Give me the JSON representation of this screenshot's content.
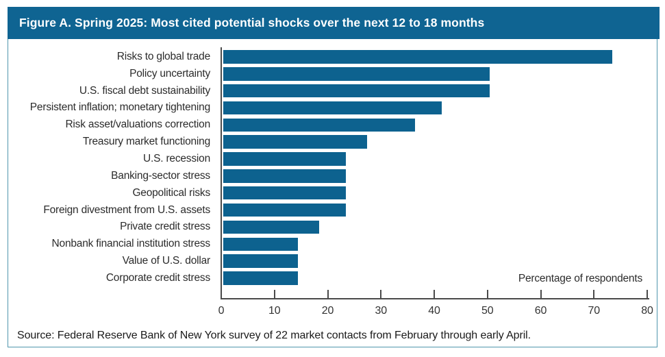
{
  "figure": {
    "title": "Figure A. Spring 2025: Most cited potential shocks over the next 12 to 18 months",
    "source": "Source: Federal Reserve Bank of New York survey of 22 market contacts from February through early April."
  },
  "colors": {
    "header_bg": "#0f6492",
    "bar": "#0d628f",
    "frame_border": "#4f96ad",
    "axis": "#4a4a4a",
    "label_text": "#2b2b2b"
  },
  "chart_data": {
    "type": "bar",
    "orientation": "horizontal",
    "title": "Figure A. Spring 2025: Most cited potential shocks over the next 12 to 18 months",
    "categories": [
      "Risks to global trade",
      "Policy uncertainty",
      "U.S. fiscal debt sustainability",
      "Persistent inflation; monetary tightening",
      "Risk asset/valuations correction",
      "Treasury market functioning",
      "U.S. recession",
      "Banking-sector stress",
      "Geopolitical risks",
      "Foreign divestment from U.S. assets",
      "Private credit stress",
      "Nonbank financial institution stress",
      "Value of U.S. dollar",
      "Corporate credit stress"
    ],
    "values": [
      73,
      50,
      50,
      41,
      36,
      27,
      23,
      23,
      23,
      23,
      18,
      14,
      14,
      14
    ],
    "xlabel": "Percentage of respondents",
    "ylabel": "",
    "xlim": [
      0,
      80
    ],
    "xticks": [
      0,
      10,
      20,
      30,
      40,
      50,
      60,
      70,
      80
    ],
    "grid": false,
    "legend": "none",
    "source": "Source: Federal Reserve Bank of New York survey of 22 market contacts from February through early April."
  }
}
